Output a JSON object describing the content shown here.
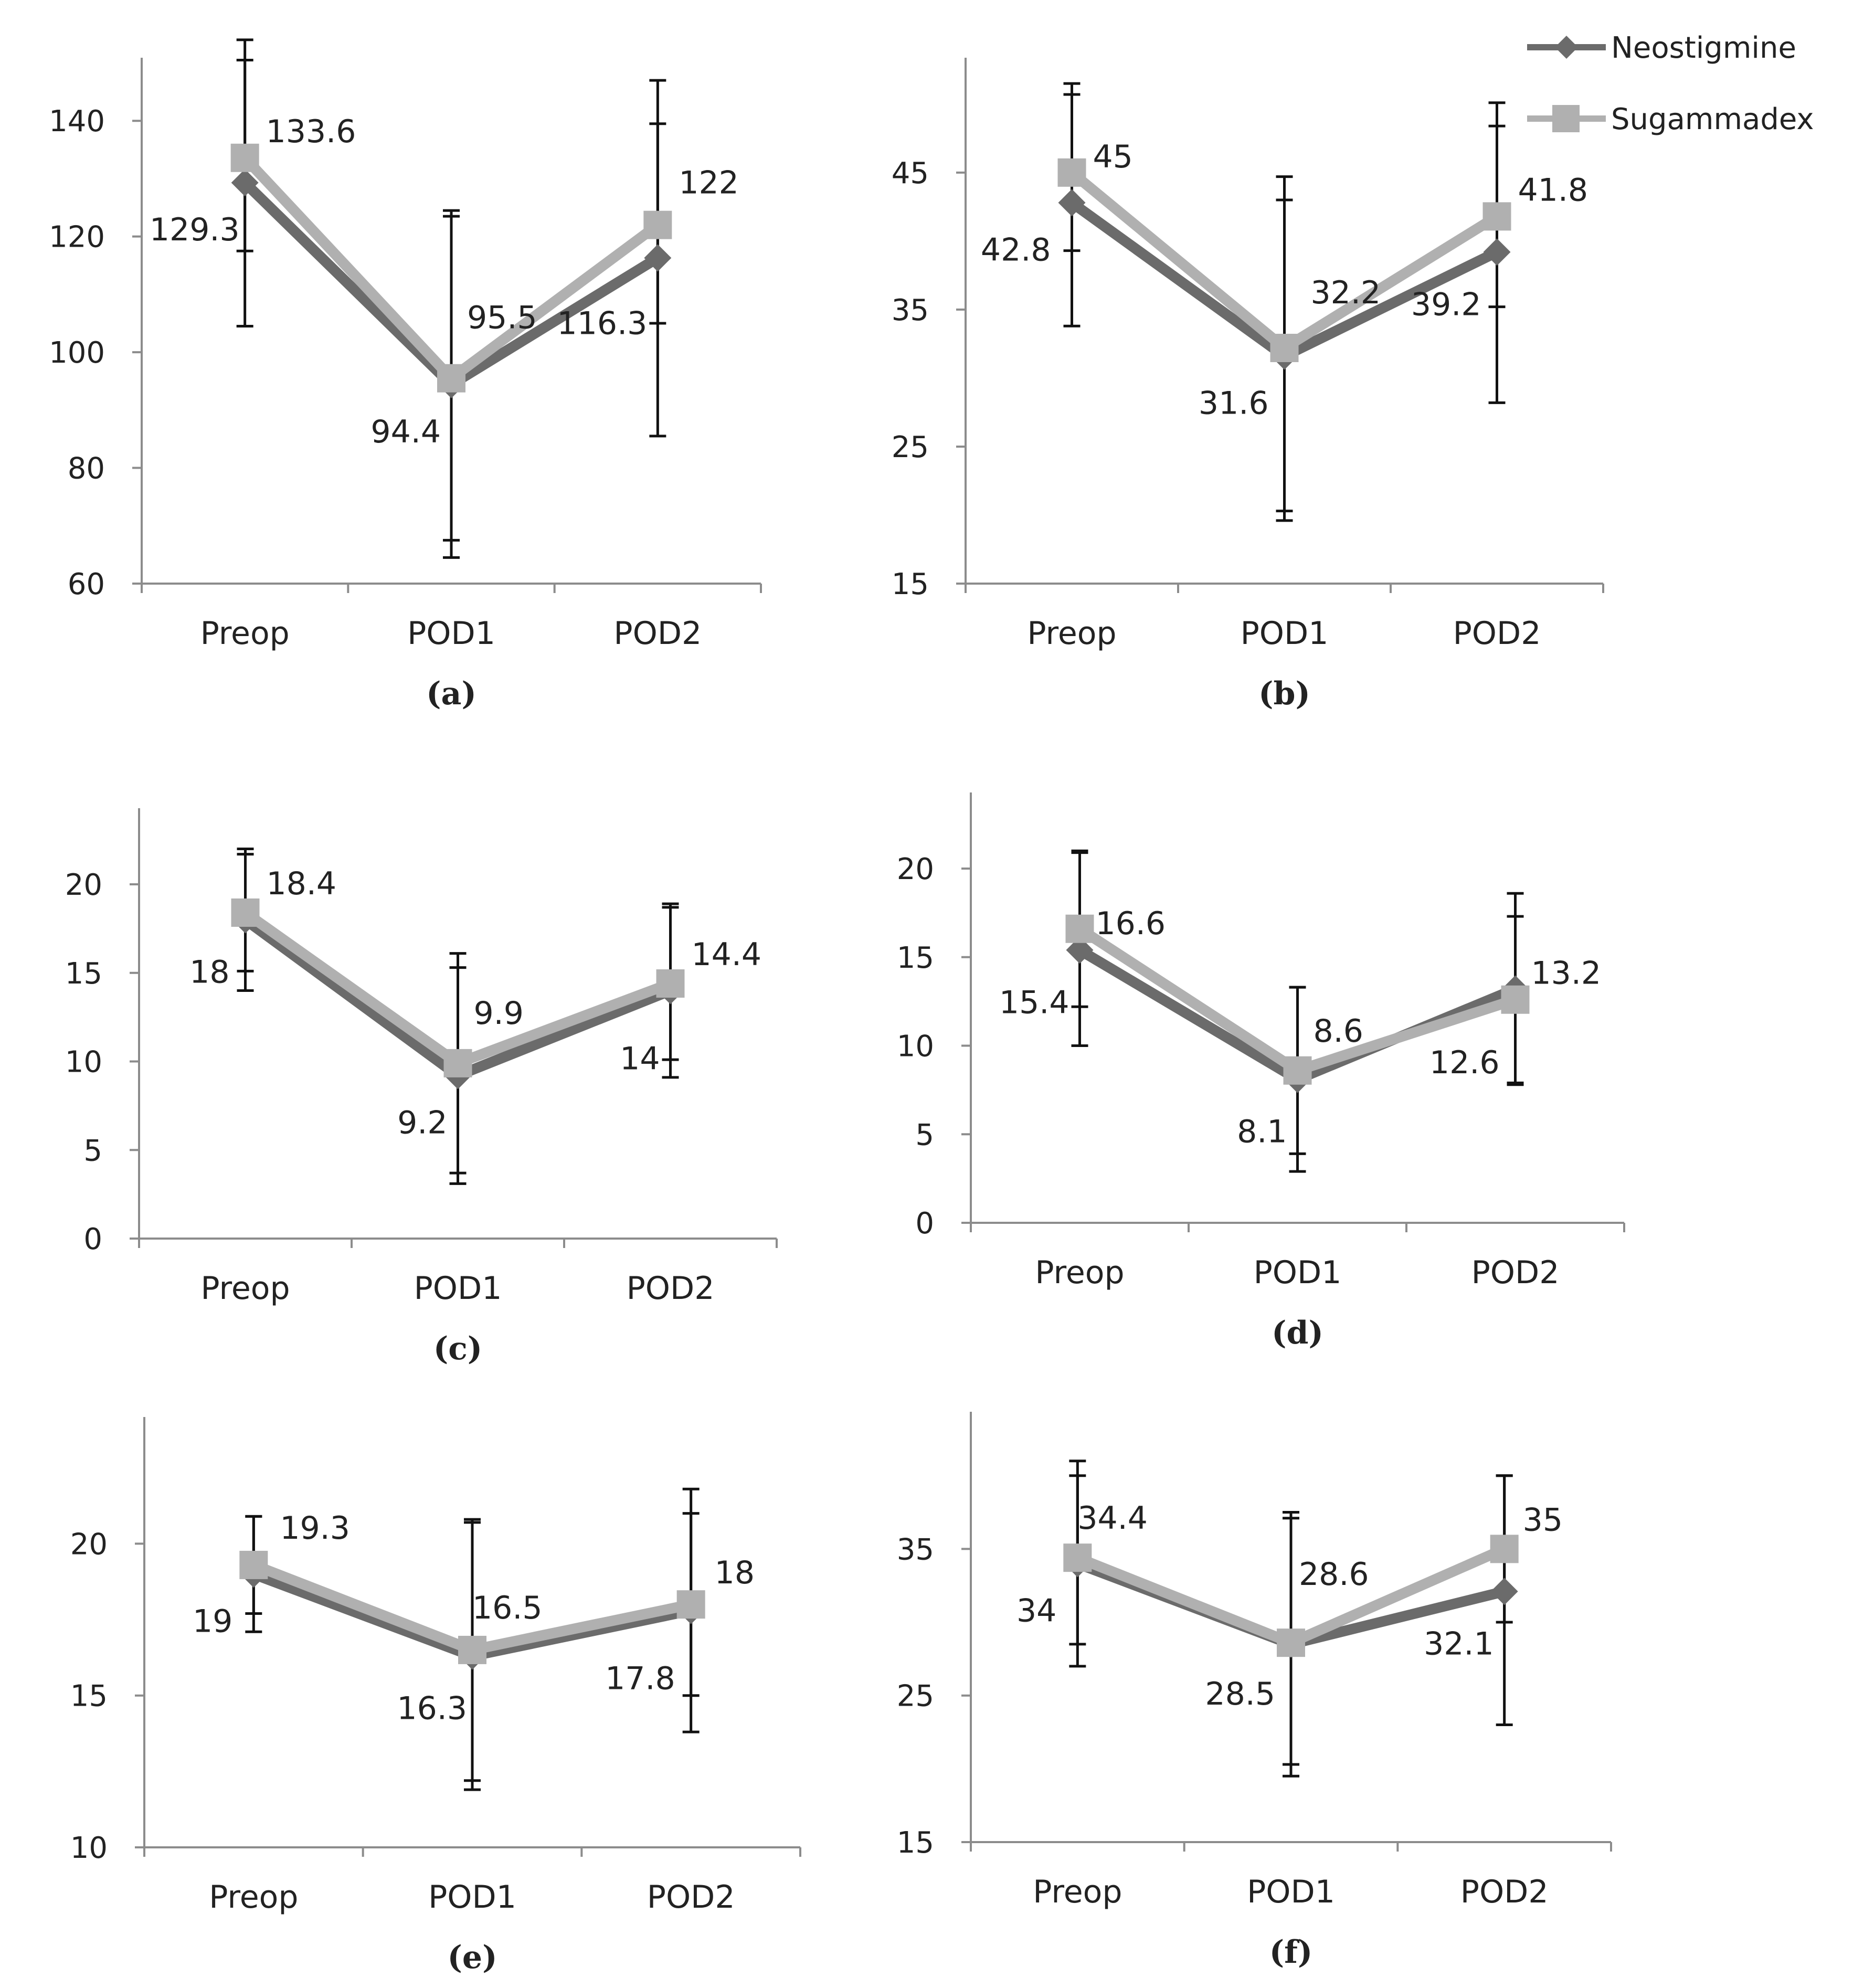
{
  "legend": [
    {
      "name": "Neostigmine",
      "color": "#6b6b6b",
      "marker": "diamond"
    },
    {
      "name": "Sugammadex",
      "color": "#b0b0b0",
      "marker": "square"
    }
  ],
  "chart_data": [
    {
      "type": "line",
      "panel": "(a)",
      "categories": [
        "Preop",
        "POD1",
        "POD2"
      ],
      "ylim": [
        60,
        150
      ],
      "yticks": [
        60,
        80,
        100,
        120,
        140
      ],
      "series": [
        {
          "name": "Neostigmine",
          "values": [
            129.3,
            94.4,
            116.3
          ],
          "labels": [
            "129.3",
            "94.4",
            "116.3"
          ],
          "err_low": [
            104.5,
            64.5,
            85.5
          ],
          "err_high": [
            154,
            124.5,
            139.5
          ]
        },
        {
          "name": "Sugammadex",
          "values": [
            133.6,
            95.5,
            122
          ],
          "labels": [
            "133.6",
            "95.5",
            "122"
          ],
          "err_low": [
            117.5,
            67.5,
            105
          ],
          "err_high": [
            150.5,
            123.5,
            147
          ]
        }
      ]
    },
    {
      "type": "line",
      "panel": "(b)",
      "categories": [
        "Preop",
        "POD1",
        "POD2"
      ],
      "ylim": [
        15,
        53
      ],
      "yticks": [
        15,
        25,
        35,
        45
      ],
      "series": [
        {
          "name": "Neostigmine",
          "values": [
            42.8,
            31.6,
            39.2
          ],
          "labels": [
            "42.8",
            "31.6",
            "39.2"
          ],
          "err_low": [
            33.8,
            19.6,
            28.2
          ],
          "err_high": [
            51.5,
            43,
            50.1
          ]
        },
        {
          "name": "Sugammadex",
          "values": [
            45,
            32.2,
            41.8
          ],
          "labels": [
            "45",
            "32.2",
            "41.8"
          ],
          "err_low": [
            39.3,
            20.3,
            35.2
          ],
          "err_high": [
            50.7,
            44.7,
            48.4
          ]
        }
      ]
    },
    {
      "type": "line",
      "panel": "(c)",
      "categories": [
        "Preop",
        "POD1",
        "POD2"
      ],
      "ylim": [
        0,
        24
      ],
      "yticks": [
        0,
        5,
        10,
        15,
        20
      ],
      "series": [
        {
          "name": "Neostigmine",
          "values": [
            18,
            9.2,
            14
          ],
          "labels": [
            "18",
            "9.2",
            "14"
          ],
          "err_low": [
            14,
            3.1,
            9.1
          ],
          "err_high": [
            22,
            15.3,
            18.9
          ]
        },
        {
          "name": "Sugammadex",
          "values": [
            18.4,
            9.9,
            14.4
          ],
          "labels": [
            "18.4",
            "9.9",
            "14.4"
          ],
          "err_low": [
            15.1,
            3.7,
            10.1
          ],
          "err_high": [
            21.7,
            16.1,
            18.7
          ]
        }
      ]
    },
    {
      "type": "line",
      "panel": "(d)",
      "categories": [
        "Preop",
        "POD1",
        "POD2"
      ],
      "ylim": [
        0,
        24
      ],
      "yticks": [
        0,
        5,
        10,
        15,
        20
      ],
      "series": [
        {
          "name": "Neostigmine",
          "values": [
            15.4,
            8.1,
            13.2
          ],
          "labels": [
            "15.4",
            "8.1",
            "13.2"
          ],
          "err_low": [
            10,
            2.9,
            7.8
          ],
          "err_high": [
            20.9,
            13.3,
            18.6
          ]
        },
        {
          "name": "Sugammadex",
          "values": [
            16.6,
            8.6,
            12.6
          ],
          "labels": [
            "16.6",
            "8.6",
            "12.6"
          ],
          "err_low": [
            12.2,
            3.9,
            7.9
          ],
          "err_high": [
            21,
            13.3,
            17.3
          ]
        }
      ]
    },
    {
      "type": "line",
      "panel": "(e)",
      "categories": [
        "Preop",
        "POD1",
        "POD2"
      ],
      "ylim": [
        10,
        24
      ],
      "yticks": [
        10,
        15,
        20
      ],
      "series": [
        {
          "name": "Neostigmine",
          "values": [
            19,
            16.3,
            17.8
          ],
          "labels": [
            "19",
            "16.3",
            "17.8"
          ],
          "err_low": [
            17.1,
            11.9,
            13.8
          ],
          "err_high": [
            20.9,
            20.7,
            21.8
          ]
        },
        {
          "name": "Sugammadex",
          "values": [
            19.3,
            16.5,
            18
          ],
          "labels": [
            "19.3",
            "16.5",
            "18"
          ],
          "err_low": [
            17.7,
            12.2,
            15
          ],
          "err_high": [
            20.9,
            20.8,
            21
          ]
        }
      ]
    },
    {
      "type": "line",
      "panel": "(f)",
      "categories": [
        "Preop",
        "POD1",
        "POD2"
      ],
      "ylim": [
        15,
        44
      ],
      "yticks": [
        15,
        25,
        35
      ],
      "series": [
        {
          "name": "Neostigmine",
          "values": [
            34,
            28.5,
            32.1
          ],
          "labels": [
            "34",
            "28.5",
            "32.1"
          ],
          "err_low": [
            27,
            19.5,
            23
          ],
          "err_high": [
            41,
            37.5,
            40
          ]
        },
        {
          "name": "Sugammadex",
          "values": [
            34.4,
            28.6,
            35
          ],
          "labels": [
            "34.4",
            "28.6",
            "35"
          ],
          "err_low": [
            28.5,
            20.3,
            30
          ],
          "err_high": [
            40,
            37.1,
            40
          ]
        }
      ]
    }
  ]
}
